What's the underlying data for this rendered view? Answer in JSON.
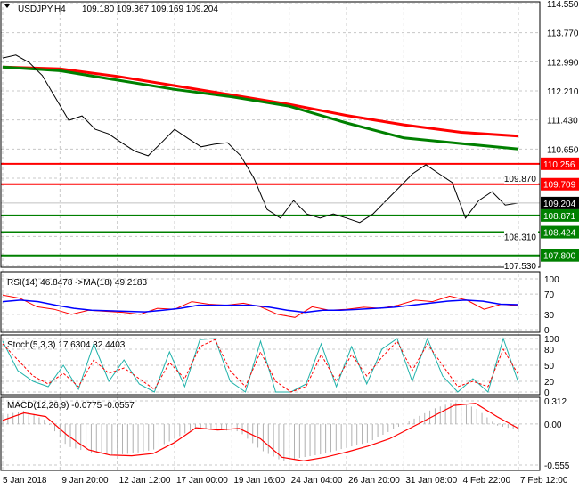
{
  "chart_data": [
    {
      "type": "line",
      "title": "USDJPY,H4",
      "ohlc_label": "109.180 109.367 109.169 109.204",
      "ylim": [
        107.53,
        114.55
      ],
      "y_ticks": [
        "114.550",
        "113.770",
        "112.990",
        "112.210",
        "111.430",
        "110.650",
        "109.870",
        "109.204",
        "108.310",
        "107.530"
      ],
      "close": [
        113.09,
        113.17,
        112.97,
        112.62,
        112.02,
        111.42,
        111.54,
        111.18,
        111.06,
        110.82,
        110.59,
        110.47,
        110.82,
        111.18,
        110.94,
        110.71,
        110.78,
        110.82,
        110.47,
        109.87,
        109.03,
        108.8,
        109.27,
        108.91,
        108.8,
        108.91,
        108.8,
        108.68,
        108.91,
        109.27,
        109.63,
        109.99,
        110.23,
        109.99,
        109.75,
        108.8,
        109.27,
        109.51,
        109.15,
        109.204
      ],
      "ma_slow_red": [
        112.85,
        112.8,
        112.6,
        112.35,
        112.1,
        111.85,
        111.55,
        111.3,
        111.1,
        111.0
      ],
      "ma_green": [
        112.85,
        112.75,
        112.5,
        112.25,
        112.05,
        111.8,
        111.35,
        110.95,
        110.8,
        110.65
      ],
      "levels": [
        {
          "value": "110.256",
          "color": "#ff0000"
        },
        {
          "value": "109.709",
          "color": "#ff0000"
        },
        {
          "value": "108.871",
          "color": "#008000"
        },
        {
          "value": "108.424",
          "color": "#008000"
        },
        {
          "value": "107.800",
          "color": "#008000"
        }
      ],
      "current_price": "109.204",
      "x_labels": [
        "5 Jan 2018",
        "9 Jan 20:00",
        "12 Jan 12:00",
        "17 Jan 00:00",
        "19 Jan 16:00",
        "24 Jan 04:00",
        "26 Jan 20:00",
        "31 Jan 08:00",
        "4 Feb 22:00",
        "7 Feb 12:00"
      ]
    },
    {
      "type": "line",
      "title": "RSI(14) 46.8478  ->MA(18) 49.2183",
      "ylim": [
        0,
        100
      ],
      "y_ticks": [
        "100",
        "70",
        "30",
        "0"
      ],
      "rsi": [
        68,
        62,
        45,
        40,
        30,
        38,
        36,
        34,
        30,
        42,
        40,
        55,
        50,
        48,
        52,
        45,
        30,
        24,
        45,
        38,
        40,
        44,
        42,
        48,
        58,
        55,
        66,
        58,
        40,
        50,
        46.8
      ],
      "ma": [
        55,
        58,
        55,
        48,
        42,
        38,
        37,
        36,
        35,
        38,
        42,
        48,
        48,
        48,
        48,
        44,
        38,
        34,
        38,
        38,
        40,
        42,
        44,
        48,
        52,
        56,
        58,
        56,
        50,
        49.2
      ]
    },
    {
      "type": "line",
      "title": "Stoch(5,3,3) 17.6304 32.4403",
      "ylim": [
        0,
        100
      ],
      "y_ticks": [
        "100",
        "80",
        "50",
        "20",
        "0"
      ],
      "main": [
        95,
        40,
        20,
        10,
        50,
        5,
        90,
        20,
        60,
        15,
        0,
        75,
        10,
        98,
        100,
        20,
        0,
        95,
        0,
        0,
        15,
        90,
        10,
        85,
        15,
        80,
        100,
        20,
        100,
        30,
        0,
        25,
        0,
        100,
        17.6
      ],
      "signal": [
        90,
        60,
        30,
        15,
        35,
        10,
        60,
        35,
        45,
        25,
        5,
        55,
        25,
        85,
        98,
        40,
        10,
        75,
        20,
        0,
        10,
        70,
        20,
        70,
        30,
        65,
        95,
        40,
        90,
        50,
        10,
        20,
        10,
        80,
        32.4
      ]
    },
    {
      "type": "line",
      "title": "MACD(12,26,9) -0.0775 -0.0557",
      "ylim": [
        -0.555,
        0.312
      ],
      "y_ticks": [
        "0.312",
        "0.00",
        "-0.555"
      ],
      "macd": [
        0.05,
        0.15,
        0.1,
        -0.15,
        -0.35,
        -0.42,
        -0.43,
        -0.4,
        -0.25,
        -0.05,
        -0.08,
        -0.06,
        -0.2,
        -0.45,
        -0.5,
        -0.45,
        -0.38,
        -0.3,
        -0.2,
        -0.05,
        0.1,
        0.25,
        0.28,
        0.1,
        -0.06
      ],
      "histogram": [
        0.12,
        0.18,
        0.05,
        -0.3,
        -0.38,
        -0.42,
        -0.4,
        -0.35,
        -0.2,
        -0.05,
        -0.08,
        -0.1,
        -0.35,
        -0.5,
        -0.45,
        -0.4,
        -0.32,
        -0.25,
        -0.1,
        0.05,
        0.2,
        0.3,
        0.22,
        -0.02,
        -0.08
      ]
    }
  ]
}
